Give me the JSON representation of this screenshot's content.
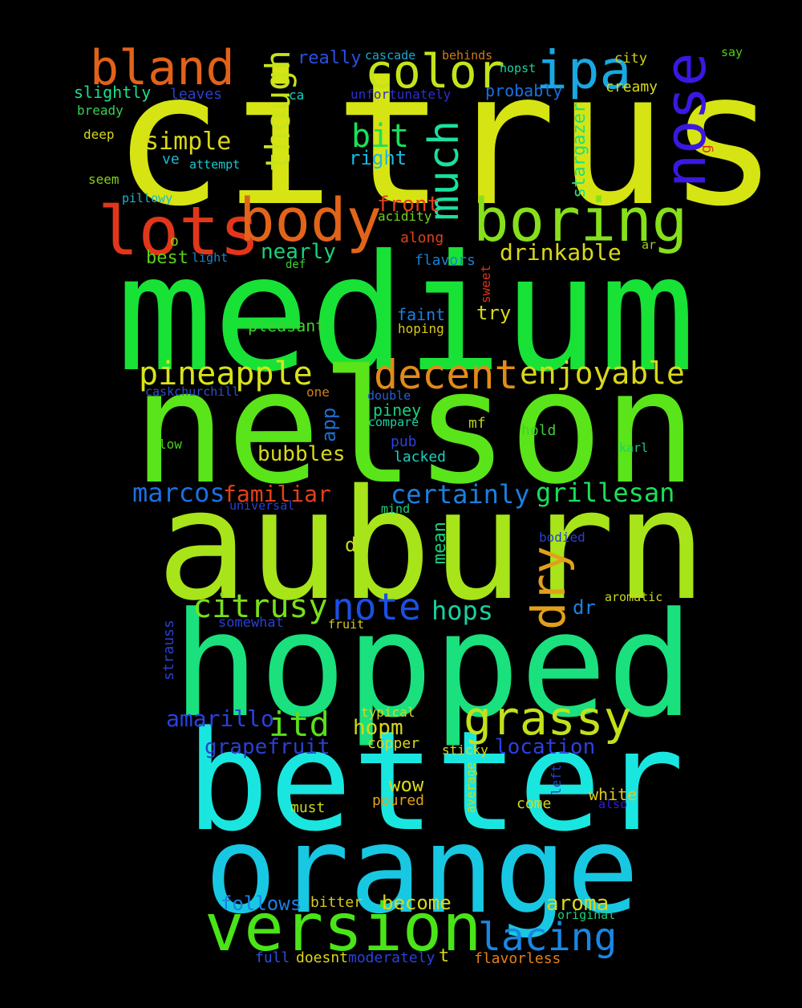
{
  "background": "#000000",
  "words": [
    {
      "id": "citrus",
      "text": "citrus",
      "color": "#d6e414",
      "vertical": false
    },
    {
      "id": "medium",
      "text": "medium",
      "color": "#18e236",
      "vertical": false
    },
    {
      "id": "nelson",
      "text": "nelson",
      "color": "#5ae41a",
      "vertical": false
    },
    {
      "id": "auburn",
      "text": "auburn",
      "color": "#a8e41a",
      "vertical": false
    },
    {
      "id": "hopped",
      "text": "hopped",
      "color": "#1ae07e",
      "vertical": false
    },
    {
      "id": "better",
      "text": "better",
      "color": "#1ae6e0",
      "vertical": false
    },
    {
      "id": "orange",
      "text": "orange",
      "color": "#18c8e2",
      "vertical": false
    },
    {
      "id": "version",
      "text": "version",
      "color": "#4ae418",
      "vertical": false
    },
    {
      "id": "lots",
      "text": "lots",
      "color": "#e2361a",
      "vertical": false
    },
    {
      "id": "body",
      "text": "body",
      "color": "#e2641a",
      "vertical": false
    },
    {
      "id": "boring",
      "text": "boring",
      "color": "#86e01a",
      "vertical": false
    },
    {
      "id": "bland",
      "text": "bland",
      "color": "#e2621a",
      "vertical": false
    },
    {
      "id": "color",
      "text": "color",
      "color": "#c4e41a",
      "vertical": false
    },
    {
      "id": "ipa",
      "text": "ipa",
      "color": "#18a8e2",
      "vertical": false
    },
    {
      "id": "nose",
      "text": "nose",
      "color": "#3a18e2",
      "vertical": true
    },
    {
      "id": "much",
      "text": "much",
      "color": "#1ae0a0",
      "vertical": true
    },
    {
      "id": "though",
      "text": "though",
      "color": "#c8e41a",
      "vertical": true
    },
    {
      "id": "decent",
      "text": "decent",
      "color": "#e28a1a",
      "vertical": false
    },
    {
      "id": "enjoyable",
      "text": "enjoyable",
      "color": "#d8d81a",
      "vertical": false
    },
    {
      "id": "pineapple",
      "text": "pineapple",
      "color": "#d8e41a",
      "vertical": false
    },
    {
      "id": "dry",
      "text": "dry",
      "color": "#e2a01a",
      "vertical": true
    },
    {
      "id": "note",
      "text": "note",
      "color": "#1a50e2",
      "vertical": false
    },
    {
      "id": "citrusy",
      "text": "citrusy",
      "color": "#78e01a",
      "vertical": false
    },
    {
      "id": "grassy",
      "text": "grassy",
      "color": "#c4e01a",
      "vertical": false
    },
    {
      "id": "lacing",
      "text": "lacing",
      "color": "#1a86e2",
      "vertical": false
    },
    {
      "id": "bit",
      "text": "bit",
      "color": "#1ae05a",
      "vertical": false
    },
    {
      "id": "simple",
      "text": "simple",
      "color": "#d8d81a",
      "vertical": false
    },
    {
      "id": "right",
      "text": "right",
      "color": "#1ab8e2",
      "vertical": false
    },
    {
      "id": "really",
      "text": "really",
      "color": "#2a50e2",
      "vertical": false
    },
    {
      "id": "slightly",
      "text": "slightly",
      "color": "#1ae08a",
      "vertical": false
    },
    {
      "id": "leaves",
      "text": "leaves",
      "color": "#2a40d0",
      "vertical": false
    },
    {
      "id": "ca",
      "text": "ca",
      "color": "#18d0c0",
      "vertical": false
    },
    {
      "id": "bready",
      "text": "bready",
      "color": "#3ad050",
      "vertical": false
    },
    {
      "id": "deep",
      "text": "deep",
      "color": "#d8d81a",
      "vertical": false
    },
    {
      "id": "seem",
      "text": "seem",
      "color": "#86d01a",
      "vertical": false
    },
    {
      "id": "ve",
      "text": "ve",
      "color": "#1ab8d0",
      "vertical": false
    },
    {
      "id": "attempt",
      "text": "attempt",
      "color": "#1ac8d0",
      "vertical": false
    },
    {
      "id": "pillowy",
      "text": "pillowy",
      "color": "#1ab8d0",
      "vertical": false
    },
    {
      "id": "cascade",
      "text": "cascade",
      "color": "#1aa8d0",
      "vertical": false
    },
    {
      "id": "behinds",
      "text": "behinds",
      "color": "#d07a1a",
      "vertical": false
    },
    {
      "id": "hopst",
      "text": "hopst",
      "color": "#1ad0a0",
      "vertical": false
    },
    {
      "id": "city",
      "text": "city",
      "color": "#d0d01a",
      "vertical": false
    },
    {
      "id": "say",
      "text": "say",
      "color": "#4ad01a",
      "vertical": false
    },
    {
      "id": "unfortunately",
      "text": "unfortunately",
      "color": "#2a30d0",
      "vertical": false
    },
    {
      "id": "probably",
      "text": "probably",
      "color": "#1a70e2",
      "vertical": false
    },
    {
      "id": "creamy",
      "text": "creamy",
      "color": "#d8d81a",
      "vertical": false
    },
    {
      "id": "g",
      "text": "g",
      "color": "#e2301a",
      "vertical": true
    },
    {
      "id": "stargazer",
      "text": "stargazer",
      "color": "#1ae07e",
      "vertical": true
    },
    {
      "id": "front",
      "text": "front",
      "color": "#e2401a",
      "vertical": false
    },
    {
      "id": "acidity",
      "text": "acidity",
      "color": "#78d01a",
      "vertical": false
    },
    {
      "id": "along",
      "text": "along",
      "color": "#e2401a",
      "vertical": false
    },
    {
      "id": "o",
      "text": "o",
      "color": "#86d01a",
      "vertical": false
    },
    {
      "id": "best",
      "text": "best",
      "color": "#5ad01a",
      "vertical": false
    },
    {
      "id": "light",
      "text": "light",
      "color": "#1a86d0",
      "vertical": false
    },
    {
      "id": "def",
      "text": "def",
      "color": "#40d030",
      "vertical": false
    },
    {
      "id": "nearly",
      "text": "nearly",
      "color": "#1ad07a",
      "vertical": false
    },
    {
      "id": "drinkable",
      "text": "drinkable",
      "color": "#d8d81a",
      "vertical": false
    },
    {
      "id": "flavors",
      "text": "flavors",
      "color": "#1a80d0",
      "vertical": false
    },
    {
      "id": "ar",
      "text": "ar",
      "color": "#a0d01a",
      "vertical": false
    },
    {
      "id": "sweet",
      "text": "sweet",
      "color": "#e2301a",
      "vertical": true
    },
    {
      "id": "faint",
      "text": "faint",
      "color": "#1a80e2",
      "vertical": false
    },
    {
      "id": "try",
      "text": "try",
      "color": "#d8d81a",
      "vertical": false
    },
    {
      "id": "pleasant",
      "text": "pleasant",
      "color": "#40d030",
      "vertical": false
    },
    {
      "id": "hoping",
      "text": "hoping",
      "color": "#d8c81a",
      "vertical": false
    },
    {
      "id": "caskchurchill",
      "text": "caskchurchill",
      "color": "#2a50d0",
      "vertical": false
    },
    {
      "id": "one",
      "text": "one",
      "color": "#d0801a",
      "vertical": false
    },
    {
      "id": "double",
      "text": "double",
      "color": "#2a60d0",
      "vertical": false
    },
    {
      "id": "piney",
      "text": "piney",
      "color": "#1ad07a",
      "vertical": false
    },
    {
      "id": "compare",
      "text": "compare",
      "color": "#1ad0a0",
      "vertical": false
    },
    {
      "id": "app",
      "text": "app",
      "color": "#1a70d0",
      "vertical": true
    },
    {
      "id": "mf",
      "text": "mf",
      "color": "#c0d01a",
      "vertical": false
    },
    {
      "id": "hold",
      "text": "hold",
      "color": "#40d030",
      "vertical": false
    },
    {
      "id": "low",
      "text": "low",
      "color": "#4ad01a",
      "vertical": false
    },
    {
      "id": "pub",
      "text": "pub",
      "color": "#2a40e2",
      "vertical": false
    },
    {
      "id": "lacked",
      "text": "lacked",
      "color": "#1ad0c0",
      "vertical": false
    },
    {
      "id": "bubbles",
      "text": "bubbles",
      "color": "#d8d81a",
      "vertical": false
    },
    {
      "id": "karl",
      "text": "karl",
      "color": "#1ad07a",
      "vertical": false
    },
    {
      "id": "marcos",
      "text": "marcos",
      "color": "#1a70e2",
      "vertical": false
    },
    {
      "id": "familiar",
      "text": "familiar",
      "color": "#e2401a",
      "vertical": false
    },
    {
      "id": "certainly",
      "text": "certainly",
      "color": "#1a80e2",
      "vertical": false
    },
    {
      "id": "grillesan",
      "text": "grillesan",
      "color": "#1ae05a",
      "vertical": false
    },
    {
      "id": "universal",
      "text": "universal",
      "color": "#2a40d0",
      "vertical": false
    },
    {
      "id": "mind",
      "text": "mind",
      "color": "#1ad07a",
      "vertical": false
    },
    {
      "id": "d",
      "text": "d",
      "color": "#c8d81a",
      "vertical": false
    },
    {
      "id": "mean",
      "text": "mean",
      "color": "#1ad07a",
      "vertical": true
    },
    {
      "id": "bodied",
      "text": "bodied",
      "color": "#2a40d0",
      "vertical": false
    },
    {
      "id": "aromatic",
      "text": "aromatic",
      "color": "#c8d81a",
      "vertical": false
    },
    {
      "id": "dr",
      "text": "dr",
      "color": "#1a80e2",
      "vertical": false
    },
    {
      "id": "hops",
      "text": "hops",
      "color": "#1ad0a0",
      "vertical": false
    },
    {
      "id": "somewhat",
      "text": "somewhat",
      "color": "#2a40d0",
      "vertical": false
    },
    {
      "id": "fruit",
      "text": "fruit",
      "color": "#d8c81a",
      "vertical": false
    },
    {
      "id": "strauss",
      "text": "strauss",
      "color": "#2a40d0",
      "vertical": true
    },
    {
      "id": "amarillo",
      "text": "amarillo",
      "color": "#2a40e2",
      "vertical": false
    },
    {
      "id": "itd",
      "text": "itd",
      "color": "#5ae01a",
      "vertical": false
    },
    {
      "id": "hopm",
      "text": "hopm",
      "color": "#d8d81a",
      "vertical": false
    },
    {
      "id": "typical",
      "text": "typical",
      "color": "#d8d81a",
      "vertical": false
    },
    {
      "id": "grapefruit",
      "text": "grapefruit",
      "color": "#2a40d0",
      "vertical": false
    },
    {
      "id": "copper",
      "text": "copper",
      "color": "#d8d81a",
      "vertical": false
    },
    {
      "id": "sticky",
      "text": "sticky",
      "color": "#d8d81a",
      "vertical": false
    },
    {
      "id": "location",
      "text": "location",
      "color": "#2a40e2",
      "vertical": false
    },
    {
      "id": "average",
      "text": "average",
      "color": "#c8d81a",
      "vertical": true
    },
    {
      "id": "left",
      "text": "left",
      "color": "#2a40d0",
      "vertical": true
    },
    {
      "id": "white",
      "text": "white",
      "color": "#e2c81a",
      "vertical": false
    },
    {
      "id": "also",
      "text": "also",
      "color": "#3a18e2",
      "vertical": false
    },
    {
      "id": "wow",
      "text": "wow",
      "color": "#d8d81a",
      "vertical": false
    },
    {
      "id": "poured",
      "text": "poured",
      "color": "#e2a01a",
      "vertical": false
    },
    {
      "id": "come",
      "text": "come",
      "color": "#d8d81a",
      "vertical": false
    },
    {
      "id": "must",
      "text": "must",
      "color": "#c8d81a",
      "vertical": false
    },
    {
      "id": "follows",
      "text": "follows",
      "color": "#1a80e2",
      "vertical": false
    },
    {
      "id": "bitter",
      "text": "bitter",
      "color": "#d8c81a",
      "vertical": false
    },
    {
      "id": "become",
      "text": "become",
      "color": "#d8d81a",
      "vertical": false
    },
    {
      "id": "aroma",
      "text": "aroma",
      "color": "#d8d81a",
      "vertical": false
    },
    {
      "id": "original",
      "text": "original",
      "color": "#1ad07a",
      "vertical": false
    },
    {
      "id": "full",
      "text": "full",
      "color": "#2a50e2",
      "vertical": false
    },
    {
      "id": "doesnt",
      "text": "doesnt",
      "color": "#d8d81a",
      "vertical": false
    },
    {
      "id": "moderately",
      "text": "moderately",
      "color": "#2a40e2",
      "vertical": false
    },
    {
      "id": "t",
      "text": "t",
      "color": "#d8d81a",
      "vertical": false
    },
    {
      "id": "flavorless",
      "text": "flavorless",
      "color": "#e2801a",
      "vertical": false
    }
  ]
}
